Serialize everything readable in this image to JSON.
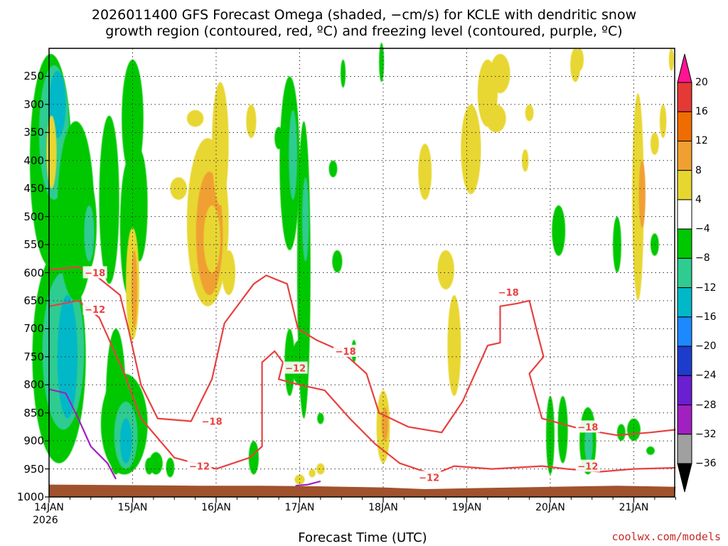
{
  "chart_data": {
    "type": "heatmap",
    "title": "2026011400 GFS Forecast Omega (shaded, −cm/s) for KCLE with dendritic snow",
    "subtitle": "growth region (contoured, red, ºC) and freezing level (contoured, purple, ºC)",
    "xlabel": "Forecast Time (UTC)",
    "x_ticks": [
      "14JAN",
      "15JAN",
      "16JAN",
      "17JAN",
      "18JAN",
      "19JAN",
      "20JAN",
      "21JAN"
    ],
    "x_year": "2026",
    "y_ticks": [
      250,
      300,
      350,
      400,
      450,
      500,
      550,
      600,
      650,
      700,
      750,
      800,
      850,
      900,
      950,
      1000
    ],
    "ylim": [
      1000,
      200
    ],
    "xlim_days": [
      0,
      7.5
    ],
    "colorbar": {
      "labels": [
        20,
        16,
        12,
        8,
        4,
        -4,
        -8,
        -12,
        -16,
        -20,
        -24,
        -28,
        -32,
        -36
      ],
      "colors": [
        "#ff1493",
        "#e53935",
        "#ef6c00",
        "#f0a030",
        "#e8d630",
        "#ffffff",
        "#00c800",
        "#2ecc90",
        "#00b8c8",
        "#1e88ff",
        "#1e3ccc",
        "#6a1fd0",
        "#a020c0",
        "#a0a0a0",
        "#000000"
      ]
    },
    "contours": {
      "dgz_minus18": {
        "label": "−18",
        "color": "#e84040",
        "points": [
          [
            0,
            595
          ],
          [
            0.35,
            590
          ],
          [
            0.6,
            610
          ],
          [
            0.85,
            640
          ],
          [
            0.95,
            700
          ],
          [
            1.1,
            800
          ],
          [
            1.3,
            860
          ],
          [
            1.7,
            865
          ],
          [
            1.95,
            790
          ],
          [
            2.1,
            690
          ],
          [
            2.45,
            620
          ],
          [
            2.6,
            605
          ],
          [
            2.85,
            620
          ],
          [
            2.98,
            700
          ],
          [
            3.2,
            720
          ],
          [
            3.5,
            740
          ],
          [
            3.8,
            780
          ],
          [
            3.95,
            850
          ],
          [
            4.3,
            875
          ],
          [
            4.7,
            885
          ],
          [
            4.95,
            830
          ],
          [
            5.25,
            730
          ],
          [
            5.4,
            725
          ],
          [
            5.4,
            660
          ],
          [
            5.6,
            655
          ],
          [
            5.75,
            650
          ],
          [
            5.85,
            710
          ],
          [
            5.92,
            750
          ],
          [
            5.75,
            780
          ],
          [
            5.9,
            860
          ],
          [
            6.4,
            880
          ],
          [
            6.8,
            890
          ],
          [
            7.2,
            885
          ],
          [
            7.5,
            880
          ]
        ],
        "labels_at": [
          [
            0.55,
            600
          ],
          [
            1.95,
            865
          ],
          [
            3.55,
            740
          ],
          [
            5.5,
            635
          ],
          [
            6.45,
            875
          ]
        ]
      },
      "dgz_minus12": {
        "label": "−12",
        "color": "#e84040",
        "points": [
          [
            0,
            660
          ],
          [
            0.35,
            650
          ],
          [
            0.6,
            680
          ],
          [
            0.9,
            780
          ],
          [
            1.1,
            860
          ],
          [
            1.5,
            930
          ],
          [
            2.0,
            950
          ],
          [
            2.4,
            930
          ],
          [
            2.55,
            910
          ],
          [
            2.55,
            760
          ],
          [
            2.7,
            740
          ],
          [
            2.8,
            760
          ],
          [
            2.75,
            790
          ],
          [
            3.0,
            800
          ],
          [
            3.3,
            810
          ],
          [
            3.6,
            860
          ],
          [
            3.9,
            905
          ],
          [
            4.2,
            940
          ],
          [
            4.6,
            960
          ],
          [
            4.85,
            945
          ],
          [
            5.3,
            950
          ],
          [
            5.9,
            945
          ],
          [
            6.2,
            950
          ],
          [
            6.6,
            955
          ],
          [
            7.0,
            950
          ],
          [
            7.5,
            948
          ]
        ],
        "labels_at": [
          [
            0.55,
            665
          ],
          [
            1.8,
            945
          ],
          [
            2.95,
            770
          ],
          [
            4.55,
            965
          ],
          [
            6.45,
            945
          ]
        ]
      },
      "freezing_level": {
        "color": "#a020c0",
        "segments": [
          [
            [
              0,
              808
            ],
            [
              0.2,
              815
            ],
            [
              0.35,
              860
            ],
            [
              0.5,
              910
            ],
            [
              0.7,
              940
            ],
            [
              0.8,
              968
            ]
          ],
          [
            [
              2.95,
              980
            ],
            [
              3.1,
              978
            ],
            [
              3.25,
              972
            ]
          ]
        ]
      }
    }
  },
  "credit": "coolwx.com/models"
}
